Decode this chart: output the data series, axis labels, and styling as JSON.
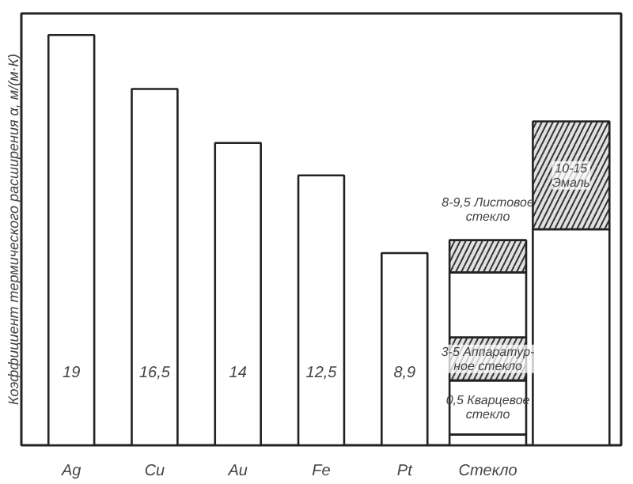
{
  "chart_data": {
    "type": "bar",
    "stacked": true,
    "ylabel": "Коэффициент термического расширения α, м/(м·К)",
    "categories": [
      "Ag",
      "Cu",
      "Au",
      "Fe",
      "Pt",
      "Стекло",
      null
    ],
    "ylim": [
      0,
      20
    ],
    "tick_labels": "x",
    "grid": false,
    "series": [
      {
        "color": "#ffffff",
        "values": [
          19,
          16.5,
          14,
          12.5,
          8.9,
          0.5,
          10
        ],
        "value_labels": [
          "19",
          "16,5",
          "14",
          "12,5",
          "8,9",
          null,
          null
        ]
      },
      {
        "color": "#ffffff",
        "values": [
          null,
          null,
          null,
          null,
          null,
          2.5,
          null
        ]
      },
      {
        "color": "#333333",
        "values": [
          null,
          null,
          null,
          null,
          null,
          2,
          5
        ]
      },
      {
        "color": "#ffffff",
        "values": [
          null,
          null,
          null,
          null,
          null,
          3,
          null
        ]
      },
      {
        "color": "#333333",
        "values": [
          null,
          null,
          null,
          null,
          null,
          1.5,
          null
        ]
      }
    ],
    "annotations": [
      "8-9,5 Листовое\nстекло",
      "3-5 Аппаратур-\nное стекло",
      "0,5 Кварцевое\nстекло",
      "10-15\nЭмаль"
    ]
  }
}
